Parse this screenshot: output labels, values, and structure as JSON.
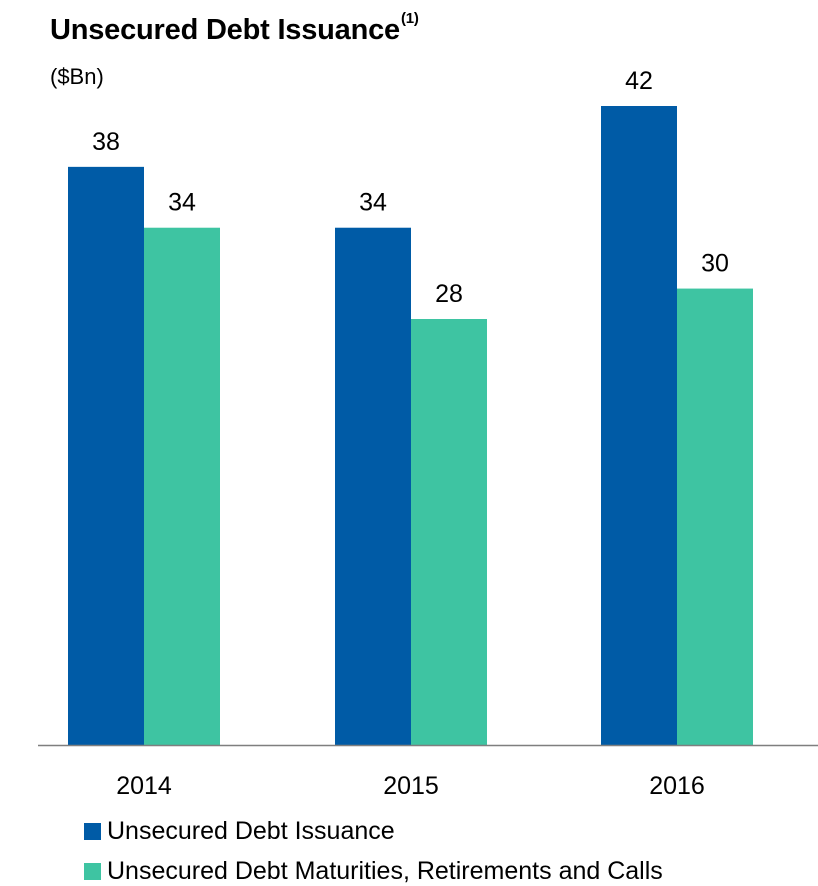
{
  "title": "Unsecured Debt Issuance",
  "title_superscript": "(1)",
  "unit": "($Bn)",
  "chart_data": {
    "type": "bar",
    "categories": [
      "2014",
      "2015",
      "2016"
    ],
    "series": [
      {
        "name": "Unsecured Debt Issuance",
        "values": [
          38,
          34,
          42
        ],
        "color": "#005ba6"
      },
      {
        "name": "Unsecured Debt Maturities, Retirements and Calls",
        "values": [
          34,
          28,
          30
        ],
        "color": "#3ec4a2"
      }
    ],
    "ylim": [
      0,
      42
    ],
    "grid": false,
    "legend": "bottom",
    "data_labels": true
  }
}
